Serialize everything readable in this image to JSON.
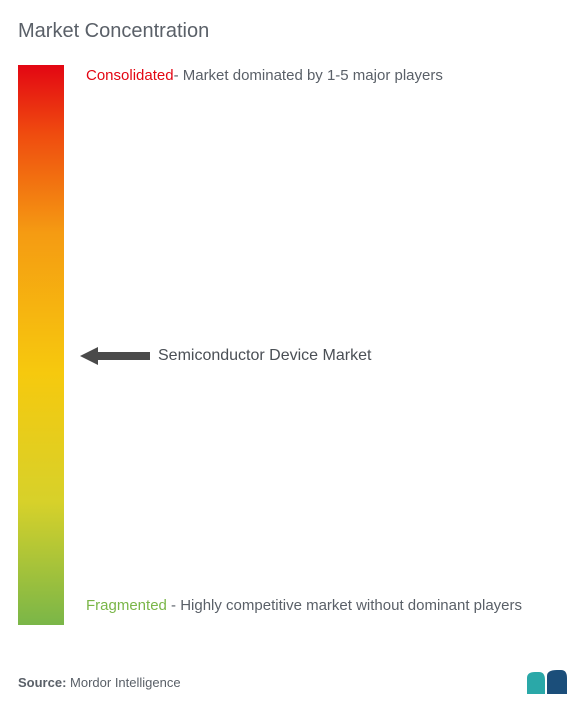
{
  "title": "Market Concentration",
  "gradient": {
    "stops": [
      "#e30613",
      "#ef4a0f",
      "#f59b12",
      "#f6c90e",
      "#d7d12a",
      "#7ab648"
    ]
  },
  "top": {
    "accent_word": "Consolidated",
    "accent_color": "#e30613",
    "rest": "- Market dominated by 1-5 major players"
  },
  "bottom": {
    "accent_word": "Fragmented",
    "accent_color": "#7ab648",
    "rest": " - Highly competitive market without dominant players"
  },
  "marker": {
    "label": "Semiconductor Device Market",
    "position_pct": 52,
    "arrow_color": "#4a4a4a"
  },
  "source": {
    "label": "Source:",
    "value": "Mordor Intelligence"
  },
  "logo": {
    "left_color": "#2aa8a8",
    "right_color": "#1b4e7a"
  }
}
